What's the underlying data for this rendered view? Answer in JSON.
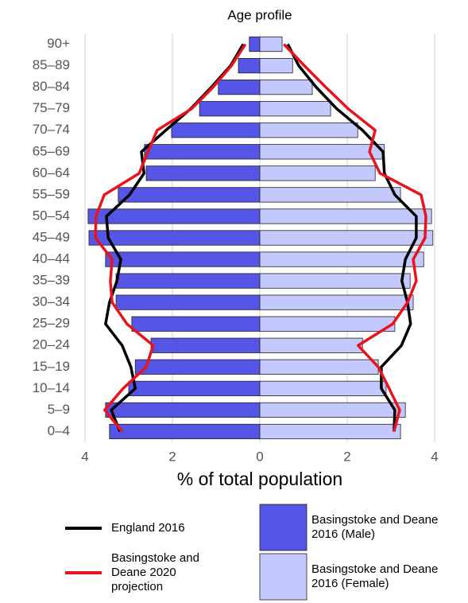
{
  "chart_data": {
    "type": "pyramid",
    "title": "Age profile",
    "x_label": "% of total population",
    "categories": [
      "0–4",
      "5–9",
      "10–14",
      "15–19",
      "20–24",
      "25–29",
      "30–34",
      "35–39",
      "40–44",
      "45–49",
      "50–54",
      "55–59",
      "60–64",
      "65–69",
      "70–74",
      "75–79",
      "80–84",
      "85–89",
      "90+"
    ],
    "xlim": [
      -4.2,
      4.2
    ],
    "xticks": [
      {
        "value": -4,
        "label": "4"
      },
      {
        "value": -2,
        "label": "2"
      },
      0,
      2,
      4
    ],
    "grid": true,
    "series": [
      {
        "name": "England 2016",
        "type": "line",
        "color": "#000000",
        "male": [
          -3.2,
          -3.4,
          -2.85,
          -2.95,
          -3.15,
          -3.53,
          -3.44,
          -3.27,
          -3.18,
          -3.47,
          -3.51,
          -2.98,
          -2.65,
          -2.71,
          -2.15,
          -1.58,
          -1.11,
          -0.67,
          -0.38
        ],
        "female": [
          3.07,
          3.09,
          2.78,
          2.78,
          3.24,
          3.45,
          3.38,
          3.25,
          3.33,
          3.58,
          3.58,
          3.09,
          2.85,
          2.82,
          2.35,
          1.76,
          1.29,
          0.89,
          0.64
        ]
      },
      {
        "name": "Basingstoke and Deane 2020 projection",
        "type": "line",
        "color": "#e8141c",
        "male": [
          -3.15,
          -3.55,
          -3.13,
          -2.6,
          -2.44,
          -3.04,
          -3.38,
          -3.42,
          -3.38,
          -3.76,
          -3.75,
          -3.56,
          -2.76,
          -2.56,
          -2.35,
          -1.56,
          -1.07,
          -0.65,
          -0.33
        ],
        "female": [
          3.07,
          3.2,
          2.96,
          2.71,
          2.25,
          3.04,
          3.38,
          3.58,
          3.51,
          3.78,
          3.8,
          3.69,
          2.75,
          2.51,
          2.64,
          2.02,
          1.51,
          1.02,
          0.55
        ]
      },
      {
        "name": "Basingstoke and Deane 2016 (Male)",
        "type": "bar",
        "color": "#5555e6",
        "values": [
          -3.44,
          -3.53,
          -3.0,
          -2.85,
          -2.49,
          -2.93,
          -3.29,
          -3.29,
          -3.53,
          -3.91,
          -3.93,
          -3.24,
          -2.6,
          -2.64,
          -2.02,
          -1.38,
          -0.95,
          -0.49,
          -0.24
        ]
      },
      {
        "name": "Basingstoke and Deane 2016 (Female)",
        "type": "bar",
        "color": "#c3c9fd",
        "values": [
          3.22,
          3.33,
          2.89,
          2.71,
          2.35,
          3.09,
          3.51,
          3.44,
          3.75,
          3.96,
          3.93,
          3.22,
          2.64,
          2.85,
          2.24,
          1.62,
          1.2,
          0.75,
          0.51
        ]
      }
    ]
  }
}
